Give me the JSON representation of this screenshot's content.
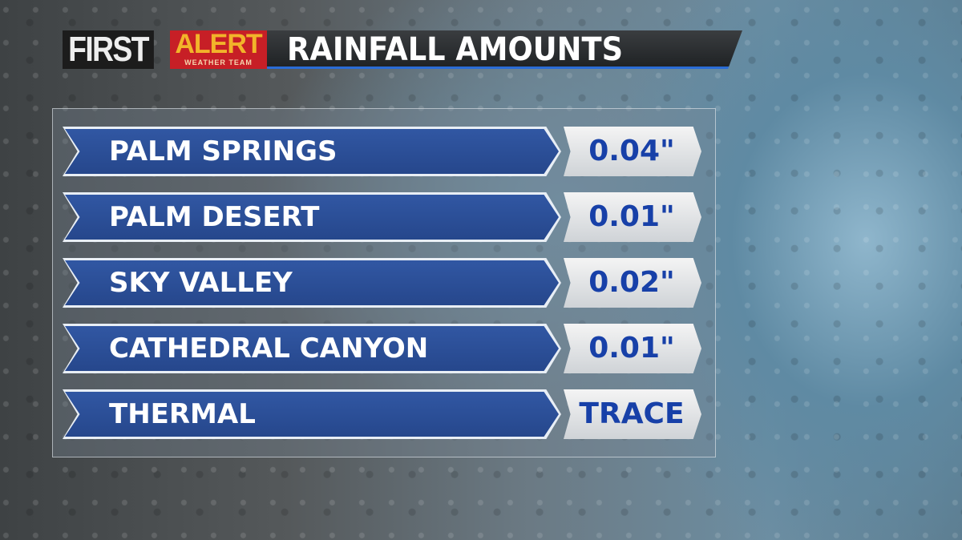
{
  "header": {
    "logo_first": "FIRST",
    "logo_alert": "ALERT",
    "logo_sub": "WEATHER TEAM",
    "title": "RAINFALL AMOUNTS"
  },
  "colors": {
    "banner": "#2b4f99",
    "value_text": "#1740a8",
    "logo_red": "#c71f26",
    "logo_gold": "#f2b42a"
  },
  "rows": [
    {
      "location": "PALM SPRINGS",
      "amount": "0.04\""
    },
    {
      "location": "PALM DESERT",
      "amount": "0.01\""
    },
    {
      "location": "SKY VALLEY",
      "amount": "0.02\""
    },
    {
      "location": "CATHEDRAL CANYON",
      "amount": "0.01\""
    },
    {
      "location": "THERMAL",
      "amount": "TRACE"
    }
  ]
}
